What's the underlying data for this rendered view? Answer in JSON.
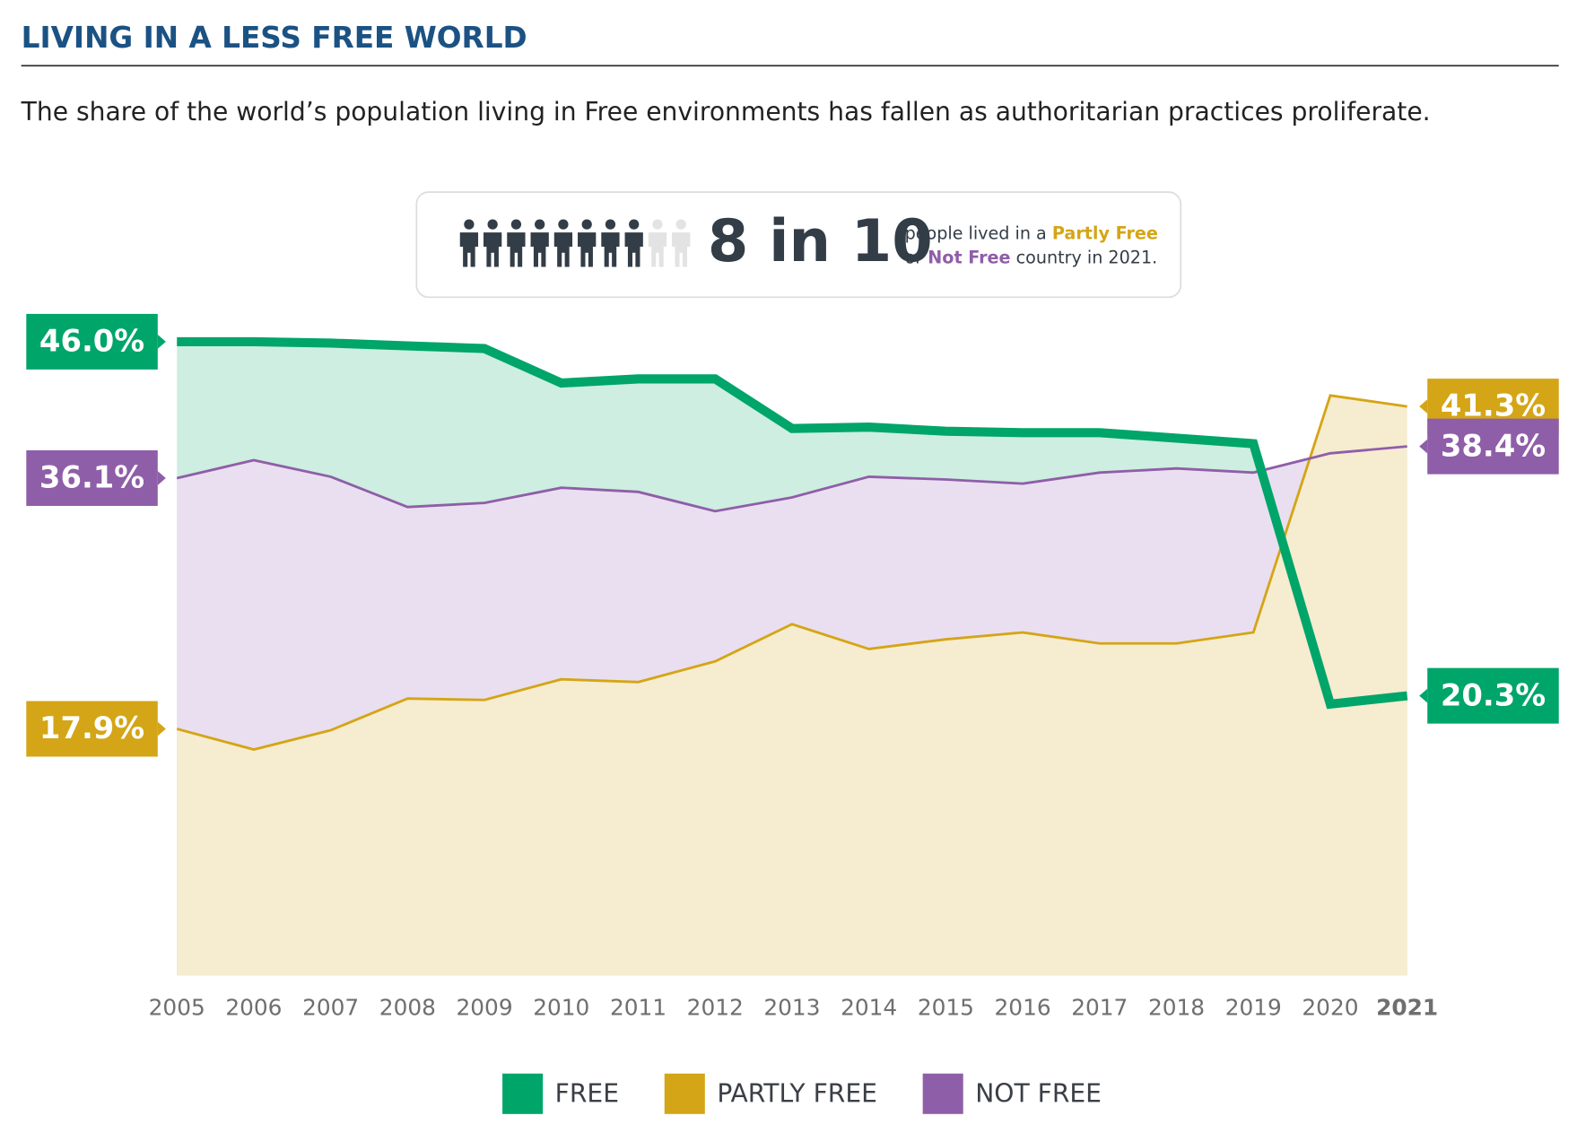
{
  "chart_data": {
    "type": "line",
    "title": "LIVING IN A LESS FREE WORLD",
    "subtitle": "The share of the world’s population living in Free environments has fallen as authoritarian practices proliferate.",
    "categories": [
      "2005",
      "2006",
      "2007",
      "2008",
      "2009",
      "2010",
      "2011",
      "2012",
      "2013",
      "2014",
      "2015",
      "2016",
      "2017",
      "2018",
      "2019",
      "2020",
      "2021"
    ],
    "series": [
      {
        "name": "FREE",
        "color": "#00a56a",
        "fill": "#cdeee0",
        "values": [
          46.0,
          46.0,
          45.9,
          45.7,
          45.5,
          43.0,
          43.3,
          43.3,
          39.7,
          39.8,
          39.5,
          39.4,
          39.4,
          39.0,
          38.6,
          19.7,
          20.3
        ],
        "value_labels": [
          "46.0%",
          null,
          null,
          null,
          null,
          null,
          null,
          null,
          null,
          null,
          null,
          null,
          null,
          null,
          null,
          null,
          "20.3%"
        ]
      },
      {
        "name": "PARTLY FREE",
        "color": "#d4a516",
        "fill": "#f6ecd0",
        "values": [
          17.9,
          16.4,
          17.8,
          20.1,
          20.0,
          21.5,
          21.3,
          22.8,
          25.5,
          23.7,
          24.4,
          24.9,
          24.1,
          24.1,
          24.9,
          42.1,
          41.3
        ],
        "value_labels": [
          "17.9%",
          null,
          null,
          null,
          null,
          null,
          null,
          null,
          null,
          null,
          null,
          null,
          null,
          null,
          null,
          null,
          "41.3%"
        ]
      },
      {
        "name": "NOT FREE",
        "color": "#8f5ea8",
        "fill": "#eadff0",
        "values": [
          36.1,
          37.4,
          36.2,
          34.0,
          34.3,
          35.4,
          35.1,
          33.7,
          34.7,
          36.2,
          36.0,
          35.7,
          36.5,
          36.8,
          36.5,
          37.9,
          38.4
        ],
        "value_labels": [
          "36.1%",
          null,
          null,
          null,
          null,
          null,
          null,
          null,
          null,
          null,
          null,
          null,
          null,
          null,
          null,
          null,
          "38.4%"
        ]
      }
    ],
    "ylim": [
      0,
      50
    ],
    "legend": "bottom"
  },
  "callout": {
    "stat": "8 in 10",
    "icons_filled": 8,
    "icons_total": 10,
    "line1": [
      "people lived in a",
      "Partly Free"
    ],
    "line2": [
      "or",
      "Not Free",
      "country in 2021."
    ]
  }
}
